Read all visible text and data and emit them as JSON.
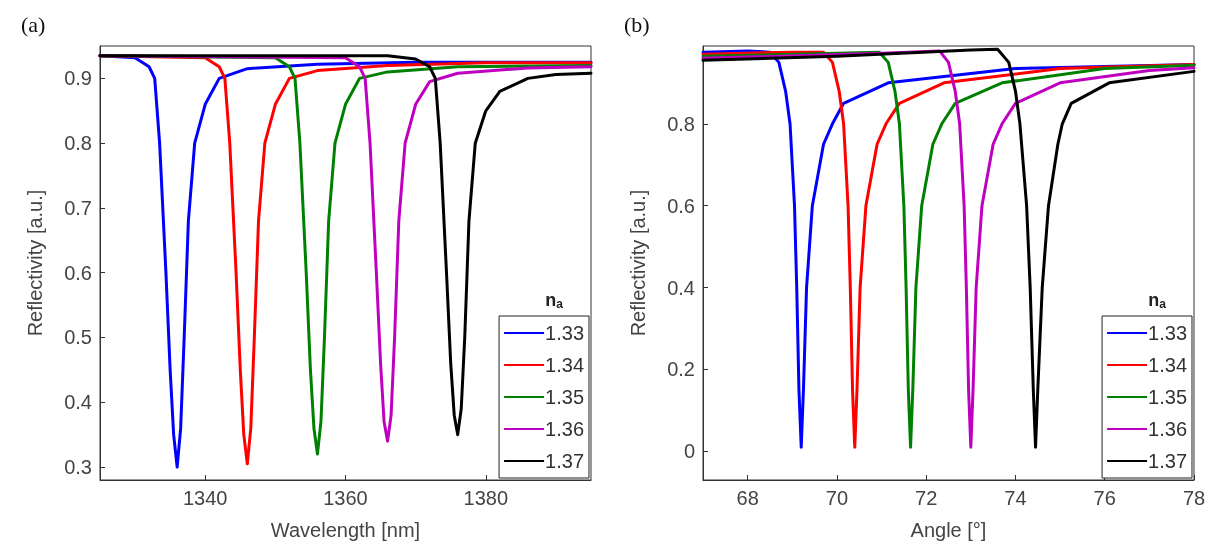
{
  "chart_data": [
    {
      "type": "line",
      "title": "(a)",
      "xlabel": "Wavelength [nm]",
      "ylabel": "Reflectivity [a.u.]",
      "legend_title": "n$_{a}$",
      "legend": "bottom right",
      "grid": false,
      "marker": "none",
      "line_style": "solid",
      "xlim": [
        1325,
        1395
      ],
      "ylim": [
        0.28,
        0.95
      ],
      "xticks": [
        1340,
        1360,
        1380
      ],
      "yticks": [
        0.3,
        0.4,
        0.5,
        0.6,
        0.7,
        0.8,
        0.9
      ],
      "series": [
        {
          "name": "1.33",
          "color": "#0000ff",
          "x": [
            1325,
            1330,
            1332,
            1332.8,
            1333.5,
            1334.4,
            1335,
            1335.5,
            1336,
            1336.5,
            1337,
            1337.6,
            1338.5,
            1340,
            1342,
            1346,
            1356,
            1370,
            1395
          ],
          "values": [
            0.935,
            0.932,
            0.918,
            0.9,
            0.8,
            0.6,
            0.45,
            0.35,
            0.3,
            0.36,
            0.5,
            0.68,
            0.8,
            0.86,
            0.9,
            0.915,
            0.922,
            0.925,
            0.925
          ]
        },
        {
          "name": "1.34",
          "color": "#ff0000",
          "x": [
            1325,
            1340,
            1342,
            1342.8,
            1343.5,
            1344.4,
            1345,
            1345.5,
            1346,
            1346.5,
            1347,
            1347.6,
            1348.5,
            1350,
            1352,
            1356,
            1366,
            1380,
            1395
          ],
          "values": [
            0.935,
            0.932,
            0.918,
            0.9,
            0.8,
            0.6,
            0.45,
            0.35,
            0.305,
            0.36,
            0.5,
            0.68,
            0.8,
            0.86,
            0.9,
            0.912,
            0.92,
            0.924,
            0.924
          ]
        },
        {
          "name": "1.35",
          "color": "#008000",
          "x": [
            1325,
            1350,
            1352,
            1352.8,
            1353.5,
            1354.4,
            1355,
            1355.5,
            1356,
            1356.5,
            1357,
            1357.6,
            1358.5,
            1360,
            1362,
            1366,
            1376,
            1395
          ],
          "values": [
            0.935,
            0.932,
            0.918,
            0.9,
            0.8,
            0.6,
            0.45,
            0.36,
            0.32,
            0.37,
            0.5,
            0.68,
            0.8,
            0.86,
            0.9,
            0.91,
            0.918,
            0.92
          ]
        },
        {
          "name": "1.36",
          "color": "#c000c0",
          "x": [
            1325,
            1360,
            1362,
            1362.8,
            1363.5,
            1364.4,
            1365,
            1365.5,
            1366,
            1366.5,
            1367,
            1367.6,
            1368.5,
            1370,
            1372,
            1376,
            1386,
            1395
          ],
          "values": [
            0.935,
            0.932,
            0.918,
            0.9,
            0.8,
            0.6,
            0.46,
            0.37,
            0.34,
            0.38,
            0.5,
            0.68,
            0.8,
            0.86,
            0.895,
            0.908,
            0.916,
            0.918
          ]
        },
        {
          "name": "1.37",
          "color": "#000000",
          "x": [
            1325,
            1366,
            1370,
            1372,
            1372.8,
            1373.5,
            1374.4,
            1375,
            1375.5,
            1376,
            1376.5,
            1377,
            1377.6,
            1378.5,
            1380,
            1382,
            1386,
            1390,
            1395
          ],
          "values": [
            0.935,
            0.935,
            0.93,
            0.918,
            0.9,
            0.8,
            0.6,
            0.46,
            0.38,
            0.35,
            0.39,
            0.5,
            0.68,
            0.8,
            0.85,
            0.88,
            0.9,
            0.906,
            0.908
          ]
        }
      ]
    },
    {
      "type": "line",
      "title": "(b)",
      "xlabel": "Angle [°]",
      "ylabel": "Reflectivity [a.u.]",
      "legend_title": "n$_{a}$",
      "legend": "bottom right",
      "grid": false,
      "marker": "none",
      "line_style": "solid",
      "xlim": [
        67,
        78
      ],
      "ylim": [
        -0.07,
        0.99
      ],
      "xticks": [
        68,
        70,
        72,
        74,
        76,
        78
      ],
      "yticks": [
        0,
        0.2,
        0.4,
        0.6,
        0.8
      ],
      "series": [
        {
          "name": "1.33",
          "color": "#0000ff",
          "x": [
            67,
            68,
            68.5,
            68.7,
            68.85,
            68.95,
            69.05,
            69.1,
            69.15,
            69.2,
            69.25,
            69.32,
            69.45,
            69.7,
            69.9,
            70.15,
            71.15,
            74,
            78
          ],
          "values": [
            0.975,
            0.978,
            0.975,
            0.95,
            0.88,
            0.8,
            0.6,
            0.4,
            0.15,
            0.01,
            0.15,
            0.4,
            0.6,
            0.75,
            0.8,
            0.85,
            0.9,
            0.935,
            0.945
          ]
        },
        {
          "name": "1.34",
          "color": "#ff0000",
          "x": [
            67,
            69,
            69.7,
            69.9,
            70.05,
            70.15,
            70.25,
            70.3,
            70.35,
            70.4,
            70.45,
            70.52,
            70.65,
            70.9,
            71.1,
            71.4,
            72.4,
            75,
            78
          ],
          "values": [
            0.97,
            0.975,
            0.975,
            0.95,
            0.88,
            0.8,
            0.6,
            0.4,
            0.15,
            0.01,
            0.15,
            0.4,
            0.6,
            0.75,
            0.8,
            0.85,
            0.9,
            0.935,
            0.945
          ]
        },
        {
          "name": "1.35",
          "color": "#008000",
          "x": [
            67,
            70,
            70.95,
            71.15,
            71.3,
            71.4,
            71.5,
            71.55,
            71.6,
            71.65,
            71.7,
            71.77,
            71.9,
            72.15,
            72.35,
            72.65,
            73.7,
            76,
            78
          ],
          "values": [
            0.965,
            0.972,
            0.975,
            0.95,
            0.88,
            0.8,
            0.6,
            0.4,
            0.15,
            0.01,
            0.15,
            0.4,
            0.6,
            0.75,
            0.8,
            0.85,
            0.9,
            0.935,
            0.943
          ]
        },
        {
          "name": "1.36",
          "color": "#c000c0",
          "x": [
            67,
            71,
            72.3,
            72.5,
            72.65,
            72.75,
            72.85,
            72.9,
            72.95,
            73,
            73.05,
            73.12,
            73.25,
            73.5,
            73.7,
            74,
            75,
            77,
            78
          ],
          "values": [
            0.96,
            0.972,
            0.978,
            0.95,
            0.88,
            0.8,
            0.6,
            0.4,
            0.15,
            0.01,
            0.15,
            0.4,
            0.6,
            0.75,
            0.8,
            0.85,
            0.9,
            0.93,
            0.937
          ]
        },
        {
          "name": "1.37",
          "color": "#000000",
          "x": [
            67,
            70,
            73,
            73.6,
            73.85,
            74,
            74.1,
            74.25,
            74.33,
            74.4,
            74.45,
            74.5,
            74.6,
            74.74,
            74.95,
            75.05,
            75.25,
            76.1,
            78
          ],
          "values": [
            0.955,
            0.965,
            0.98,
            0.982,
            0.95,
            0.88,
            0.8,
            0.6,
            0.4,
            0.15,
            0.01,
            0.15,
            0.4,
            0.6,
            0.75,
            0.8,
            0.85,
            0.9,
            0.928
          ]
        }
      ]
    }
  ]
}
